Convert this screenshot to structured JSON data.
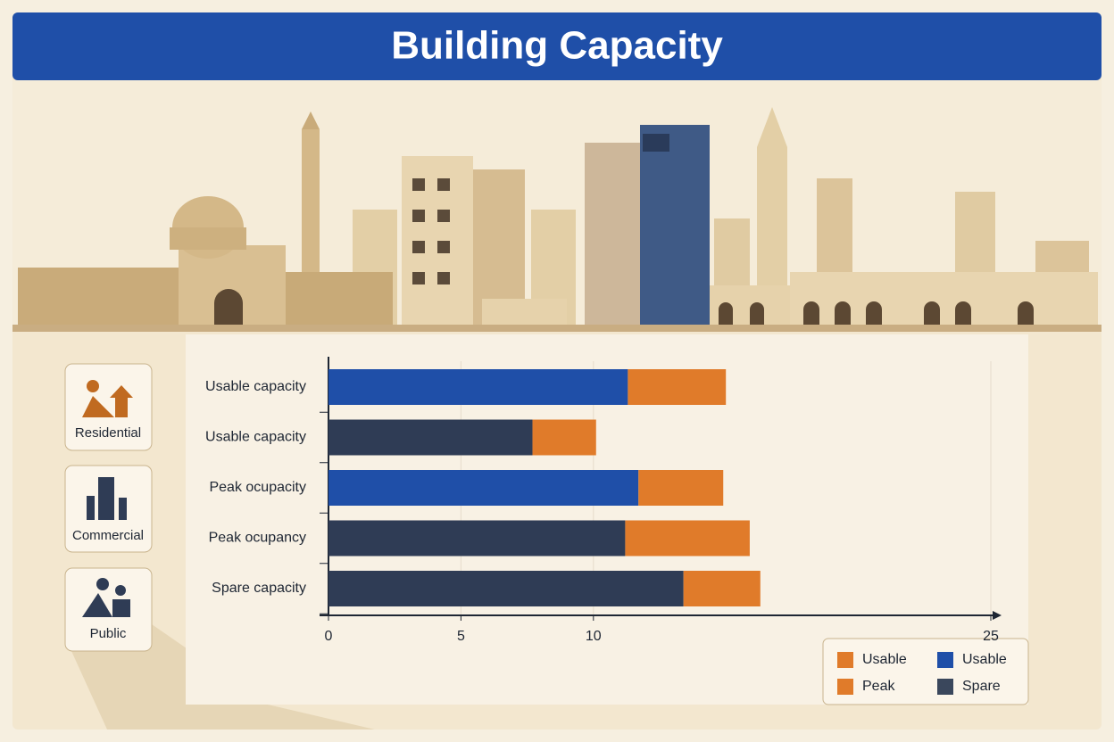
{
  "title": "Building Capacity",
  "sidebar": [
    "Residential",
    "Commercial",
    "Public"
  ],
  "chart_data": {
    "type": "stacked-barh",
    "categories": [
      "Usable capacity",
      "Usable capacity",
      "Peak ocupacity",
      "Peak ocupancy",
      "Spare capacity"
    ],
    "series": [
      {
        "color": "#1f4fa8",
        "values": [
          11.3,
          null,
          11.7,
          null,
          null
        ]
      },
      {
        "color": "#2f3c55",
        "values": [
          null,
          7.7,
          null,
          11.2,
          13.4
        ]
      },
      {
        "color": "#e07b2a",
        "values": [
          3.7,
          2.4,
          3.2,
          4.7,
          2.9
        ]
      }
    ],
    "legend": [
      {
        "name": "Usable",
        "color": "#e07b2a"
      },
      {
        "name": "Usable",
        "color": "#1f4fa8"
      },
      {
        "name": "Peak",
        "color": "#e07b2a"
      },
      {
        "name": "Spare",
        "color": "#3a475c"
      }
    ],
    "xlim": [
      0,
      25
    ],
    "xticks": [
      0,
      5,
      10,
      25
    ],
    "grid": true
  }
}
